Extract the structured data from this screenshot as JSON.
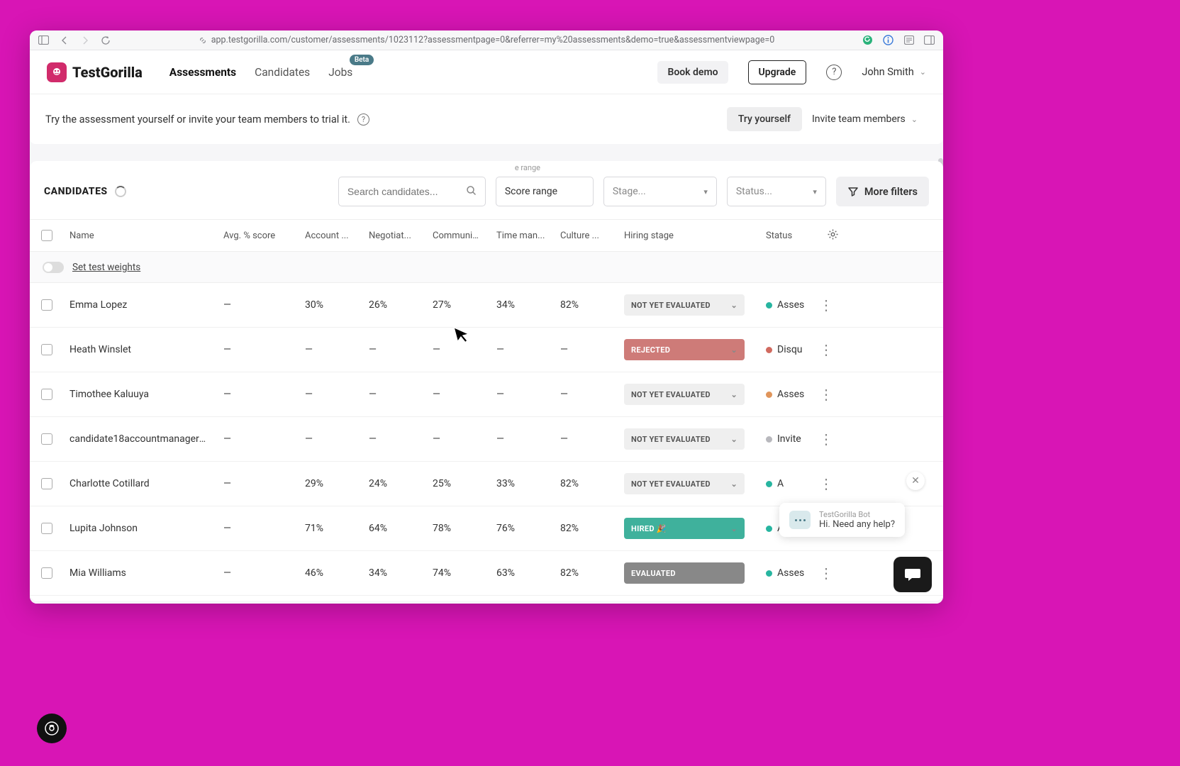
{
  "browser": {
    "url": "app.testgorilla.com/customer/assessments/1023112?assessmentpage=0&referrer=my%20assessments&demo=true&assessmentviewpage=0"
  },
  "header": {
    "brand": "TestGorilla",
    "nav": {
      "assessments": "Assessments",
      "candidates": "Candidates",
      "jobs": "Jobs",
      "jobs_badge": "Beta"
    },
    "book_demo": "Book demo",
    "upgrade": "Upgrade",
    "user_name": "John Smith"
  },
  "banner": {
    "text": "Try the assessment yourself or invite your team members to trial it.",
    "try_self": "Try yourself",
    "invite": "Invite team members"
  },
  "filters": {
    "section_label": "CANDIDATES",
    "search_placeholder": "Search candidates...",
    "score_range_label": "Score range",
    "score_range_tooltip": "e range",
    "stage_placeholder": "Stage...",
    "status_placeholder": "Status...",
    "more_filters": "More filters"
  },
  "table": {
    "columns": {
      "name": "Name",
      "avg": "Avg. % score",
      "c1": "Account ...",
      "c2": "Negotiat...",
      "c3": "Communic...",
      "c4": "Time man...",
      "c5": "Culture ...",
      "hiring": "Hiring stage",
      "status": "Status"
    },
    "weights_link": "Set test weights",
    "stage_options": {
      "not_eval": "NOT YET EVALUATED",
      "rejected": "REJECTED",
      "hired": "HIRED 🎉",
      "evaluated": "EVALUATED"
    },
    "rows": [
      {
        "name": "Emma Lopez",
        "avg": "—",
        "s": [
          "30%",
          "26%",
          "27%",
          "34%",
          "82%"
        ],
        "stage": "not_eval",
        "status_dot": "teal",
        "status_text": "Asses"
      },
      {
        "name": "Heath Winslet",
        "avg": "—",
        "s": [
          "—",
          "—",
          "—",
          "—",
          "—"
        ],
        "stage": "rejected",
        "status_dot": "red",
        "status_text": "Disqu"
      },
      {
        "name": "Timothee Kaluuya",
        "avg": "—",
        "s": [
          "—",
          "—",
          "—",
          "—",
          "—"
        ],
        "stage": "not_eval",
        "status_dot": "orange",
        "status_text": "Asses"
      },
      {
        "name": "candidate18accountmanager@e...",
        "avg": "—",
        "s": [
          "—",
          "—",
          "—",
          "—",
          "—"
        ],
        "stage": "not_eval",
        "status_dot": "grey",
        "status_text": "Invite"
      },
      {
        "name": "Charlotte Cotillard",
        "avg": "—",
        "s": [
          "29%",
          "24%",
          "25%",
          "33%",
          "82%"
        ],
        "stage": "not_eval",
        "status_dot": "teal",
        "status_text": "A"
      },
      {
        "name": "Lupita Johnson",
        "avg": "—",
        "s": [
          "71%",
          "64%",
          "78%",
          "76%",
          "82%"
        ],
        "stage": "hired",
        "status_dot": "teal",
        "status_text": "Asses"
      },
      {
        "name": "Mia Williams",
        "avg": "—",
        "s": [
          "46%",
          "34%",
          "74%",
          "63%",
          "82%"
        ],
        "stage": "evaluated",
        "status_dot": "teal",
        "status_text": "Asses"
      }
    ]
  },
  "chat": {
    "bot_name": "TestGorilla Bot",
    "greeting": "Hi. Need any help?"
  },
  "colors": {
    "page_bg": "#d815b5",
    "stage_default_bg": "#efefef",
    "stage_rejected_bg": "#ce7b78",
    "stage_hired_bg": "#3fb19c",
    "stage_evaluated_bg": "#888888",
    "dot_teal": "#27b5a0",
    "dot_red": "#d16a5f",
    "dot_orange": "#e0955b",
    "dot_grey": "#b8b8bd"
  }
}
